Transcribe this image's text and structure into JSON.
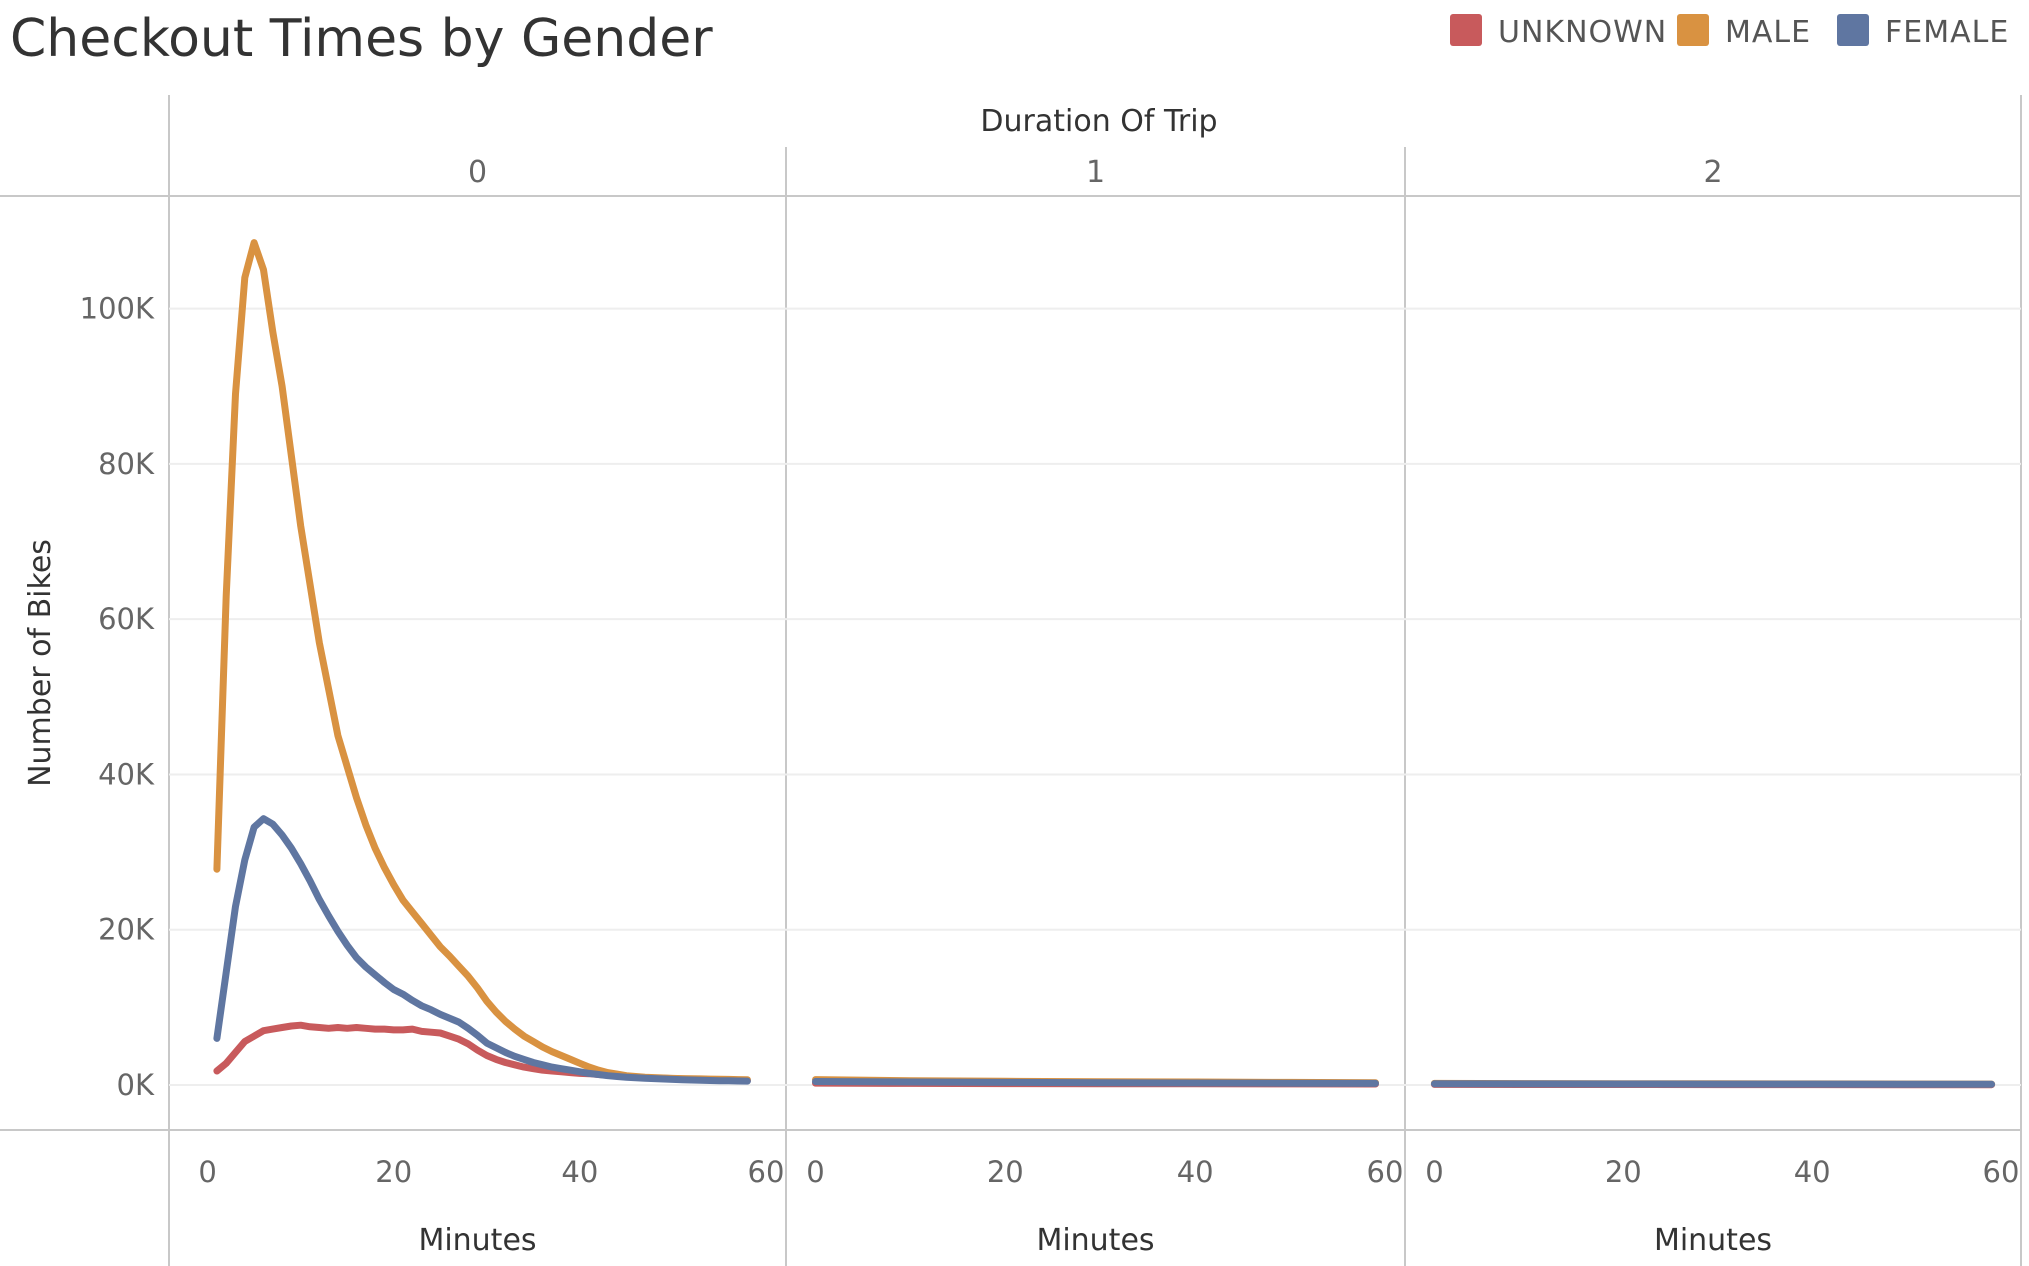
{
  "chart_data": {
    "type": "line",
    "title": "Checkout Times by Gender",
    "column_header": "Duration Of Trip",
    "ylabel": "Number of Bikes",
    "ylim": [
      0,
      110000
    ],
    "y_ticks": [
      0,
      20000,
      40000,
      60000,
      80000,
      100000
    ],
    "y_tick_labels": [
      "0K",
      "20K",
      "40K",
      "60K",
      "80K",
      "100K"
    ],
    "grid": true,
    "legend": {
      "placement": "top-right",
      "entries": [
        {
          "name": "UNKNOWN",
          "color": "#c85a5c"
        },
        {
          "name": "MALE",
          "color": "#d99241"
        },
        {
          "name": "FEMALE",
          "color": "#5f76a1"
        }
      ]
    },
    "panels": [
      {
        "label": "0",
        "xlabel": "Minutes",
        "xlim": [
          -2,
          60
        ],
        "x_ticks": [
          0,
          20,
          40,
          60
        ],
        "series": [
          {
            "name": "UNKNOWN",
            "color": "#c85a5c",
            "x": [
              1,
              2,
              3,
              4,
              5,
              6,
              7,
              8,
              9,
              10,
              11,
              12,
              13,
              14,
              15,
              16,
              17,
              18,
              19,
              20,
              21,
              22,
              23,
              24,
              25,
              26,
              27,
              28,
              29,
              30,
              31,
              32,
              33,
              34,
              35,
              36,
              37,
              38,
              39,
              40,
              41,
              42,
              43,
              44,
              45,
              46,
              47,
              48,
              49,
              50,
              51,
              52,
              53,
              54,
              55,
              56,
              57,
              58
            ],
            "y": [
              1800,
              2800,
              4200,
              5600,
              6300,
              7000,
              7200,
              7400,
              7600,
              7700,
              7500,
              7400,
              7300,
              7400,
              7300,
              7400,
              7300,
              7200,
              7200,
              7100,
              7100,
              7200,
              6900,
              6800,
              6700,
              6300,
              5900,
              5300,
              4500,
              3800,
              3300,
              2900,
              2600,
              2300,
              2100,
              1900,
              1800,
              1700,
              1600,
              1500,
              1450,
              1350,
              1250,
              1150,
              1050,
              1000,
              950,
              900,
              860,
              820,
              780,
              740,
              700,
              680,
              650,
              620,
              600,
              580
            ]
          },
          {
            "name": "MALE",
            "color": "#d99241",
            "x": [
              1,
              2,
              3,
              4,
              5,
              6,
              7,
              8,
              9,
              10,
              11,
              12,
              13,
              14,
              15,
              16,
              17,
              18,
              19,
              20,
              21,
              22,
              23,
              24,
              25,
              26,
              27,
              28,
              29,
              30,
              31,
              32,
              33,
              34,
              35,
              36,
              37,
              38,
              39,
              40,
              41,
              42,
              43,
              44,
              45,
              46,
              47,
              48,
              49,
              50,
              51,
              52,
              53,
              54,
              55,
              56,
              57,
              58
            ],
            "y": [
              27800,
              63000,
              89000,
              104000,
              108500,
              105000,
              97000,
              90000,
              81000,
              72000,
              64500,
              57000,
              51000,
              45000,
              41000,
              37000,
              33500,
              30500,
              28000,
              25800,
              23800,
              22300,
              20800,
              19300,
              17800,
              16600,
              15300,
              14000,
              12500,
              10800,
              9400,
              8200,
              7200,
              6300,
              5600,
              4900,
              4300,
              3800,
              3300,
              2800,
              2300,
              1900,
              1600,
              1400,
              1200,
              1100,
              1000,
              950,
              900,
              850,
              820,
              800,
              780,
              760,
              740,
              720,
              700,
              680
            ]
          },
          {
            "name": "FEMALE",
            "color": "#5f76a1",
            "x": [
              1,
              2,
              3,
              4,
              5,
              6,
              7,
              8,
              9,
              10,
              11,
              12,
              13,
              14,
              15,
              16,
              17,
              18,
              19,
              20,
              21,
              22,
              23,
              24,
              25,
              26,
              27,
              28,
              29,
              30,
              31,
              32,
              33,
              34,
              35,
              36,
              37,
              38,
              39,
              40,
              41,
              42,
              43,
              44,
              45,
              46,
              47,
              48,
              49,
              50,
              51,
              52,
              53,
              54,
              55,
              56,
              57,
              58
            ],
            "y": [
              6000,
              14500,
              23000,
              29000,
              33200,
              34300,
              33600,
              32200,
              30500,
              28500,
              26300,
              23900,
              21800,
              19800,
              18000,
              16400,
              15200,
              14200,
              13200,
              12300,
              11700,
              10900,
              10200,
              9700,
              9100,
              8600,
              8100,
              7300,
              6400,
              5400,
              4800,
              4200,
              3700,
              3300,
              2900,
              2600,
              2300,
              2100,
              1900,
              1700,
              1500,
              1350,
              1200,
              1100,
              1000,
              940,
              880,
              820,
              770,
              720,
              680,
              640,
              610,
              580,
              560,
              540,
              520,
              500
            ]
          }
        ]
      },
      {
        "label": "1",
        "xlabel": "Minutes",
        "xlim": [
          -1,
          60
        ],
        "x_ticks": [
          0,
          20,
          40,
          60
        ],
        "series": [
          {
            "name": "UNKNOWN",
            "color": "#c85a5c",
            "x": [
              0,
              10,
              20,
              30,
              40,
              50,
              59
            ],
            "y": [
              250,
              200,
              180,
              160,
              150,
              140,
              130
            ]
          },
          {
            "name": "MALE",
            "color": "#d99241",
            "x": [
              0,
              10,
              20,
              30,
              40,
              50,
              59
            ],
            "y": [
              700,
              550,
              480,
              420,
              380,
              340,
              300
            ]
          },
          {
            "name": "FEMALE",
            "color": "#5f76a1",
            "x": [
              0,
              10,
              20,
              30,
              40,
              50,
              59
            ],
            "y": [
              450,
              380,
              330,
              290,
              260,
              230,
              210
            ]
          }
        ]
      },
      {
        "label": "2",
        "xlabel": "Minutes",
        "xlim": [
          -1,
          60
        ],
        "x_ticks": [
          0,
          20,
          40,
          60
        ],
        "series": [
          {
            "name": "UNKNOWN",
            "color": "#c85a5c",
            "x": [
              0,
              10,
              20,
              30,
              40,
              50,
              59
            ],
            "y": [
              80,
              70,
              60,
              55,
              50,
              45,
              40
            ]
          },
          {
            "name": "MALE",
            "color": "#d99241",
            "x": [
              0,
              10,
              20,
              30,
              40,
              50,
              59
            ],
            "y": [
              200,
              180,
              160,
              150,
              140,
              130,
              120
            ]
          },
          {
            "name": "FEMALE",
            "color": "#5f76a1",
            "x": [
              0,
              10,
              20,
              30,
              40,
              50,
              59
            ],
            "y": [
              150,
              140,
              130,
              120,
              110,
              100,
              95
            ]
          }
        ]
      }
    ]
  }
}
